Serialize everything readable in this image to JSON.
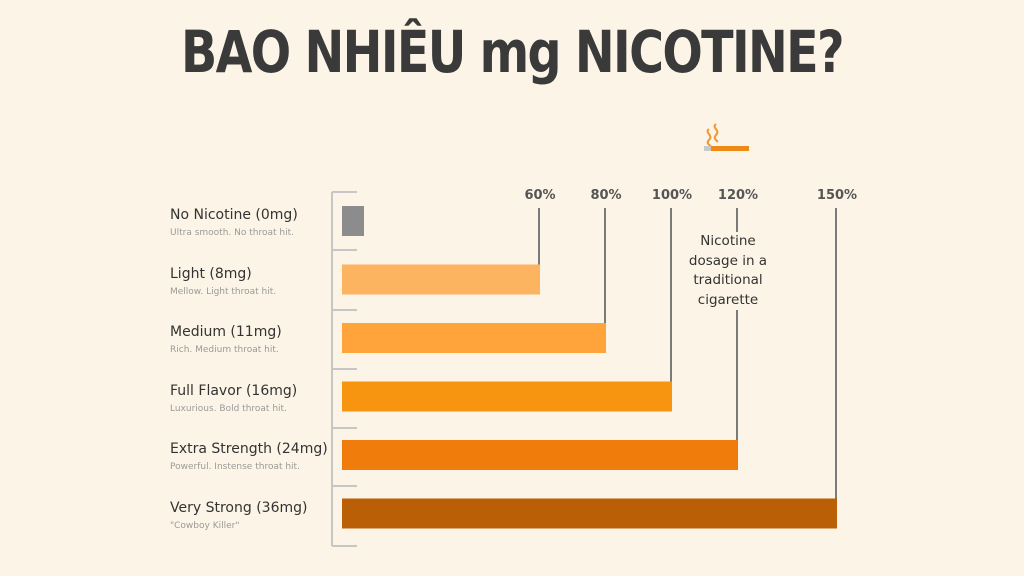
{
  "title": "BAO NHIÊU mg NICOTINE?",
  "annotation": "Nicotine dosage in a traditional cigarette",
  "icon": "cigarette-icon",
  "chart_data": {
    "type": "bar",
    "orientation": "horizontal",
    "categories": [
      "No Nicotine (0mg)",
      "Light (8mg)",
      "Medium (11mg)",
      "Full Flavor (16mg)",
      "Extra Strength (24mg)",
      "Very Strong (36mg)"
    ],
    "subtitles": [
      "Ultra smooth. No throat hit.",
      "Mellow. Light throat hit.",
      "Rich. Medium throat hit.",
      "Luxurious. Bold throat hit.",
      "Powerful. Instense throat hit.",
      "\"Cowboy Killer\""
    ],
    "values": [
      0,
      60,
      80,
      100,
      120,
      150
    ],
    "tick_labels": [
      "60%",
      "80%",
      "100%",
      "120%",
      "150%"
    ],
    "tick_values": [
      60,
      80,
      100,
      120,
      150
    ],
    "colors": [
      "#8c8c8c",
      "#fdb461",
      "#fea43a",
      "#f79511",
      "#f07d0b",
      "#bb5f06"
    ],
    "unit": "%"
  }
}
